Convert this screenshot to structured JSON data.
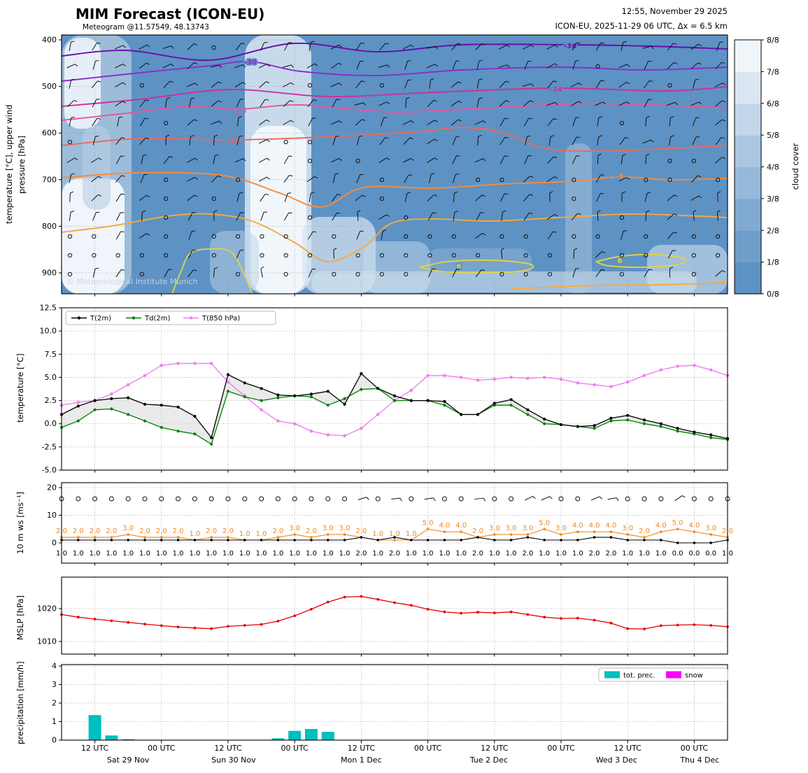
{
  "header": {
    "title": "MIM Forecast (ICON-EU)",
    "subtitle": "Meteogram @11.57549, 48.13743",
    "datetime": "12:55, November 29 2025",
    "model_info": "ICON-EU, 2025-11-29 06 UTC, Δx = 6.5 km"
  },
  "watermark": "© Meteorological Institute Munich",
  "colors": {
    "sky": "#5d92c4",
    "grid": "#999999",
    "frame": "#000000",
    "fill_between": "#d9d9d9",
    "legend_border": "#bbbbbb"
  },
  "x_axis": {
    "start_hour": 6,
    "end_hour": 126,
    "step_hours": 3,
    "ticks": [
      {
        "hour": 12,
        "label": "12 UTC"
      },
      {
        "hour": 24,
        "label": "00 UTC"
      },
      {
        "hour": 36,
        "label": "12 UTC"
      },
      {
        "hour": 48,
        "label": "00 UTC"
      },
      {
        "hour": 60,
        "label": "12 UTC"
      },
      {
        "hour": 72,
        "label": "00 UTC"
      },
      {
        "hour": 84,
        "label": "12 UTC"
      },
      {
        "hour": 96,
        "label": "00 UTC"
      },
      {
        "hour": 108,
        "label": "12 UTC"
      },
      {
        "hour": 120,
        "label": "00 UTC"
      }
    ],
    "days": [
      {
        "hour": 18,
        "label": "Sat 29 Nov"
      },
      {
        "hour": 37,
        "label": "Sun 30 Nov"
      },
      {
        "hour": 60,
        "label": "Mon 1 Dec"
      },
      {
        "hour": 83,
        "label": "Tue 2 Dec"
      },
      {
        "hour": 106,
        "label": "Wed 3 Dec"
      },
      {
        "hour": 121,
        "label": "Thu 4 Dec"
      }
    ]
  },
  "chart_data": [
    {
      "id": "cloud_cross_section",
      "type": "heatmap",
      "ylabel_line1": "temperature [°C], upper wind",
      "ylabel_line2": "pressure [hPa]",
      "pressure_ticks": [
        400,
        500,
        600,
        700,
        800,
        900
      ],
      "colorbar_label": "cloud cover",
      "colorbar_ticks": [
        "8/8",
        "7/8",
        "6/8",
        "5/8",
        "4/8",
        "3/8",
        "2/8",
        "1/8",
        "0/8"
      ],
      "colorbar_colors": [
        "#5d92c4",
        "#6f9ecb",
        "#81aad2",
        "#96b8da",
        "#abc6e2",
        "#c3d6ea",
        "#dbe6f2",
        "#f0f5fa"
      ],
      "contours": [
        {
          "label": "-36",
          "color": "#6a0dad"
        },
        {
          "label": "-30",
          "color": "#8b2fc9"
        },
        {
          "label": "-24",
          "color": "#cc2fa0"
        },
        {
          "label": "-18",
          "color": "#e8559e"
        },
        {
          "label": "-12",
          "color": "#ea6a5f"
        },
        {
          "label": "-6",
          "color": "#f58b3e"
        },
        {
          "label": "0",
          "color": "#f9a83d"
        },
        {
          "label": "6",
          "color": "#ded24b"
        }
      ]
    },
    {
      "id": "temperature",
      "type": "line",
      "ylabel": "temperature [°C]",
      "ylim": [
        -5.0,
        12.5
      ],
      "y_ticks": [
        12.5,
        10.0,
        7.5,
        5.0,
        2.5,
        0.0,
        -2.5,
        -5.0
      ],
      "series": [
        {
          "name": "T(2m)",
          "color": "#000000",
          "values": [
            1.0,
            1.9,
            2.5,
            2.7,
            2.8,
            2.1,
            2.0,
            1.8,
            0.8,
            -1.5,
            5.3,
            4.4,
            3.8,
            3.1,
            3.0,
            3.2,
            3.5,
            2.1,
            5.4,
            3.8,
            3.0,
            2.5,
            2.5,
            2.4,
            1.0,
            1.0,
            2.2,
            2.6,
            1.5,
            0.5,
            -0.1,
            -0.3,
            -0.2,
            0.6,
            0.9,
            0.4,
            0.0,
            -0.5,
            -0.9,
            -1.2,
            -1.6
          ]
        },
        {
          "name": "Td(2m)",
          "color": "#008000",
          "values": [
            -0.4,
            0.3,
            1.5,
            1.6,
            1.0,
            0.3,
            -0.4,
            -0.8,
            -1.1,
            -2.2,
            3.5,
            2.9,
            2.5,
            2.8,
            3.0,
            2.9,
            2.0,
            2.7,
            3.7,
            3.8,
            2.5,
            2.5,
            2.5,
            2.0,
            1.0,
            1.0,
            2.0,
            2.0,
            1.0,
            0.0,
            -0.1,
            -0.3,
            -0.5,
            0.3,
            0.4,
            0.0,
            -0.3,
            -0.8,
            -1.1,
            -1.5,
            -1.7
          ]
        },
        {
          "name": "T(850 hPa)",
          "color": "#ee82ee",
          "values": [
            2.0,
            2.3,
            2.5,
            3.2,
            4.2,
            5.2,
            6.3,
            6.5,
            6.5,
            6.5,
            4.5,
            3.0,
            1.5,
            0.3,
            0.0,
            -0.8,
            -1.2,
            -1.3,
            -0.5,
            1.0,
            2.5,
            3.6,
            5.2,
            5.2,
            5.0,
            4.7,
            4.8,
            5.0,
            4.9,
            5.0,
            4.8,
            4.4,
            4.2,
            4.0,
            4.5,
            5.2,
            5.8,
            6.2,
            6.3,
            5.8,
            5.2
          ]
        }
      ]
    },
    {
      "id": "wind",
      "type": "line",
      "ylabel": "10 m ws [ms⁻¹]",
      "ylim": [
        0,
        20
      ],
      "y_ticks": [
        0,
        10,
        20
      ],
      "series": [
        {
          "name": "gust",
          "color": "#ee8822",
          "values": [
            2,
            2,
            2,
            2,
            3,
            2,
            2,
            2,
            1,
            2,
            2,
            1,
            1,
            2,
            3,
            2,
            3,
            3,
            2,
            1,
            1,
            1,
            5,
            4,
            4,
            2,
            3,
            3,
            3,
            5,
            3,
            4,
            4,
            4,
            3,
            2,
            4,
            5,
            4,
            3,
            2
          ]
        },
        {
          "name": "10 m wind speed",
          "color": "#000000",
          "values": [
            1,
            1,
            1,
            1,
            1,
            1,
            1,
            1,
            1,
            1,
            1,
            1,
            1,
            1,
            1,
            1,
            1,
            1,
            2,
            1,
            2,
            1,
            1,
            1,
            1,
            2,
            1,
            1,
            2,
            1,
            1,
            1,
            2,
            2,
            1,
            1,
            1,
            0,
            0,
            0,
            1
          ]
        }
      ]
    },
    {
      "id": "mslp",
      "type": "line",
      "ylabel": "MSLP [hPa]",
      "y_ticks": [
        1010,
        1020
      ],
      "series": [
        {
          "name": "MSLP",
          "color": "#e60000",
          "values": [
            1018.2,
            1017.4,
            1016.8,
            1016.3,
            1015.8,
            1015.3,
            1014.8,
            1014.4,
            1014.1,
            1013.9,
            1014.6,
            1014.9,
            1015.2,
            1016.2,
            1017.8,
            1019.8,
            1022.0,
            1023.5,
            1023.7,
            1022.8,
            1021.8,
            1021.0,
            1019.8,
            1019.0,
            1018.6,
            1018.9,
            1018.7,
            1019.0,
            1018.2,
            1017.4,
            1017.0,
            1017.1,
            1016.5,
            1015.6,
            1013.9,
            1013.8,
            1014.8,
            1015.0,
            1015.1,
            1014.9,
            1014.5
          ]
        }
      ]
    },
    {
      "id": "precipitation",
      "type": "bar",
      "ylabel": "precipitation [mm/h]",
      "y_ticks": [
        0,
        1,
        2,
        3,
        4
      ],
      "legend": [
        "tot. prec.",
        "snow"
      ],
      "series": [
        {
          "name": "tot. prec.",
          "color": "#00bfbf",
          "values": [
            0,
            0,
            1.35,
            0.25,
            0.05,
            0,
            0,
            0,
            0,
            0,
            0,
            0,
            0.02,
            0.1,
            0.5,
            0.6,
            0.45,
            0.02,
            0,
            0,
            0,
            0,
            0,
            0,
            0,
            0,
            0,
            0,
            0,
            0,
            0,
            0,
            0,
            0,
            0,
            0,
            0,
            0,
            0,
            0,
            0
          ]
        },
        {
          "name": "snow",
          "color": "#ff00ff",
          "values": [
            0,
            0,
            0,
            0,
            0,
            0,
            0,
            0,
            0,
            0,
            0,
            0,
            0,
            0,
            0,
            0,
            0,
            0,
            0,
            0,
            0,
            0,
            0,
            0,
            0,
            0,
            0,
            0,
            0,
            0,
            0,
            0,
            0,
            0,
            0,
            0,
            0,
            0,
            0,
            0,
            0
          ]
        }
      ]
    }
  ]
}
